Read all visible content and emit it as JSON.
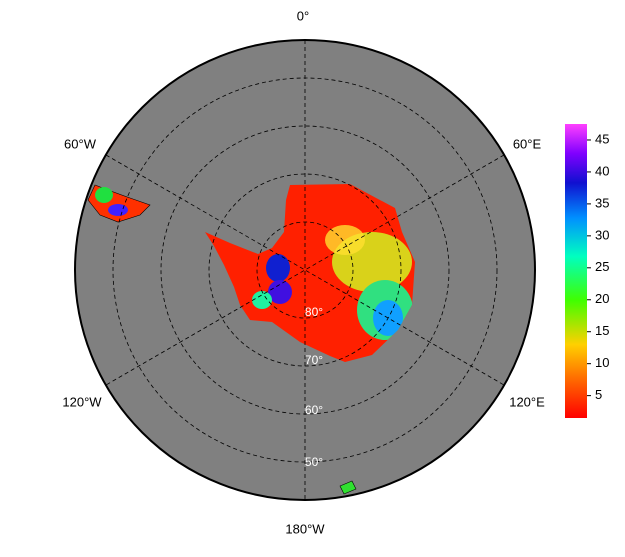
{
  "map": {
    "longitude_labels": [
      "0°",
      "60°E",
      "120°E",
      "180°W",
      "120°W",
      "60°W"
    ],
    "latitude_labels": [
      "80°",
      "70°",
      "60°",
      "50°"
    ],
    "colorbar": {
      "range": [
        1.5,
        47.5
      ],
      "ticks": [
        5,
        10,
        15,
        20,
        25,
        30,
        35,
        40,
        45
      ]
    }
  }
}
